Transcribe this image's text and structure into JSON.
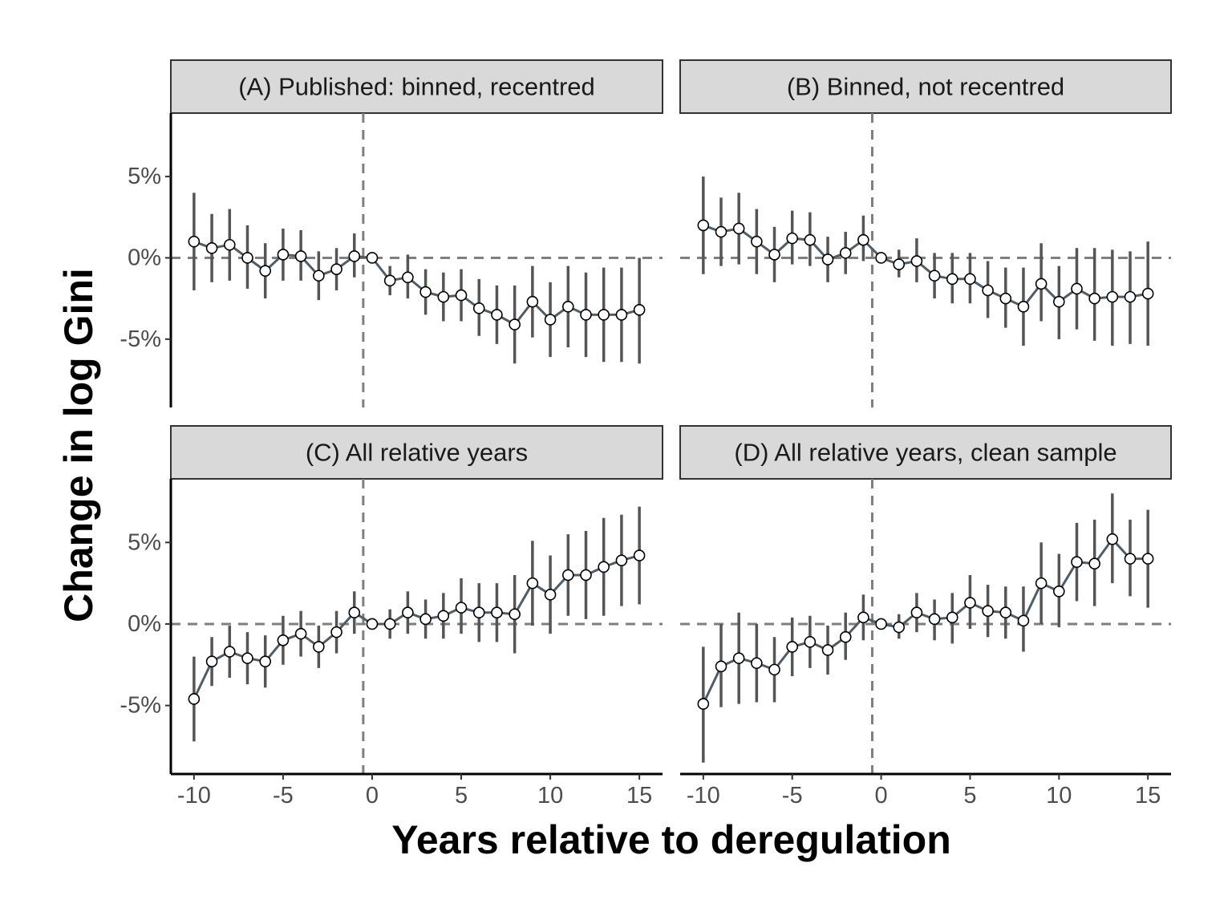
{
  "figure": {
    "ylabel": "Change in log Gini",
    "xlabel": "Years relative to deregulation"
  },
  "chart_data": [
    {
      "type": "line",
      "title": "(A) Published: binned, recentred",
      "x": [
        -10,
        -9,
        -8,
        -7,
        -6,
        -5,
        -4,
        -3,
        -2,
        -1,
        0,
        1,
        2,
        3,
        4,
        5,
        6,
        7,
        8,
        9,
        10,
        11,
        12,
        13,
        14,
        15
      ],
      "y": [
        1.0,
        0.6,
        0.8,
        0.0,
        -0.8,
        0.2,
        0.1,
        -1.1,
        -0.7,
        0.1,
        0.0,
        -1.4,
        -1.2,
        -2.1,
        -2.4,
        -2.3,
        -3.1,
        -3.5,
        -4.1,
        -2.7,
        -3.8,
        -3.0,
        -3.5,
        -3.5,
        -3.5,
        -3.2
      ],
      "lower": [
        -2.0,
        -1.5,
        -1.4,
        -1.9,
        -2.5,
        -1.4,
        -1.4,
        -2.6,
        -2.0,
        -1.2,
        0.0,
        -2.3,
        -2.5,
        -3.5,
        -3.9,
        -3.9,
        -4.8,
        -5.3,
        -6.5,
        -4.9,
        -6.1,
        -5.5,
        -6.1,
        -6.4,
        -6.4,
        -6.5
      ],
      "upper": [
        4.0,
        2.7,
        3.0,
        2.0,
        0.9,
        1.8,
        1.7,
        0.4,
        0.6,
        1.5,
        0.0,
        -0.5,
        0.2,
        -0.7,
        -0.9,
        -0.7,
        -1.3,
        -1.7,
        -1.7,
        -0.5,
        -1.5,
        -0.5,
        -0.9,
        -0.6,
        -0.6,
        0.0
      ],
      "xlim": [
        -11.3,
        16.3
      ],
      "ylim": [
        -9.2,
        8.9
      ],
      "xticks": [
        -10,
        -5,
        0,
        5,
        10,
        15
      ],
      "xtick_labels": [
        "-10",
        "-5",
        "0",
        "5",
        "10",
        "15"
      ],
      "yticks": [
        5,
        0,
        -5
      ],
      "ytick_labels": [
        "5%",
        "0%",
        "-5%"
      ],
      "reference_lines": {
        "vertical_x": -0.5,
        "horizontal_y": 0
      }
    },
    {
      "type": "line",
      "title": "(B) Binned, not recentred",
      "x": [
        -10,
        -9,
        -8,
        -7,
        -6,
        -5,
        -4,
        -3,
        -2,
        -1,
        0,
        1,
        2,
        3,
        4,
        5,
        6,
        7,
        8,
        9,
        10,
        11,
        12,
        13,
        14,
        15
      ],
      "y": [
        2.0,
        1.6,
        1.8,
        1.0,
        0.2,
        1.2,
        1.1,
        -0.1,
        0.3,
        1.1,
        0.0,
        -0.4,
        -0.2,
        -1.1,
        -1.3,
        -1.3,
        -2.0,
        -2.5,
        -3.0,
        -1.6,
        -2.7,
        -1.9,
        -2.5,
        -2.4,
        -2.4,
        -2.2
      ],
      "lower": [
        -1.0,
        -0.5,
        -0.4,
        -1.0,
        -1.5,
        -0.4,
        -0.5,
        -1.5,
        -1.0,
        -0.2,
        0.0,
        -1.2,
        -1.5,
        -2.5,
        -2.8,
        -2.8,
        -3.7,
        -4.3,
        -5.4,
        -3.9,
        -5.0,
        -4.4,
        -5.1,
        -5.4,
        -5.3,
        -5.4
      ],
      "upper": [
        5.0,
        3.7,
        4.0,
        3.0,
        1.9,
        2.9,
        2.8,
        1.3,
        1.6,
        2.6,
        0.0,
        0.5,
        1.2,
        0.3,
        0.3,
        0.3,
        -0.2,
        -0.6,
        -0.6,
        0.9,
        -0.5,
        0.6,
        0.6,
        0.5,
        0.4,
        1.0
      ],
      "xlim": [
        -11.3,
        16.3
      ],
      "ylim": [
        -9.2,
        8.9
      ],
      "xticks": [
        -10,
        -5,
        0,
        5,
        10,
        15
      ],
      "xtick_labels": [
        "-10",
        "-5",
        "0",
        "5",
        "10",
        "15"
      ],
      "yticks": [
        5,
        0,
        -5
      ],
      "ytick_labels": [
        "5%",
        "0%",
        "-5%"
      ],
      "reference_lines": {
        "vertical_x": -0.5,
        "horizontal_y": 0
      }
    },
    {
      "type": "line",
      "title": "(C) All relative years",
      "x": [
        -10,
        -9,
        -8,
        -7,
        -6,
        -5,
        -4,
        -3,
        -2,
        -1,
        0,
        1,
        2,
        3,
        4,
        5,
        6,
        7,
        8,
        9,
        10,
        11,
        12,
        13,
        14,
        15
      ],
      "y": [
        -4.6,
        -2.3,
        -1.7,
        -2.1,
        -2.3,
        -1.0,
        -0.6,
        -1.4,
        -0.5,
        0.7,
        0.0,
        0.0,
        0.7,
        0.3,
        0.5,
        1.0,
        0.7,
        0.7,
        0.6,
        2.5,
        1.8,
        3.0,
        3.0,
        3.5,
        3.9,
        4.2
      ],
      "lower": [
        -7.2,
        -3.8,
        -3.3,
        -3.7,
        -3.9,
        -2.5,
        -2.0,
        -2.7,
        -1.8,
        -0.6,
        0.0,
        -0.9,
        -0.6,
        -0.9,
        -0.9,
        -0.6,
        -1.1,
        -1.1,
        -1.8,
        -0.1,
        -0.6,
        0.5,
        0.3,
        0.5,
        1.1,
        1.2
      ],
      "upper": [
        -2.0,
        -0.8,
        -0.1,
        -0.5,
        -0.7,
        0.5,
        0.8,
        -0.1,
        0.8,
        2.0,
        0.0,
        0.9,
        2.0,
        1.5,
        1.9,
        2.8,
        2.5,
        2.5,
        3.0,
        5.1,
        4.2,
        5.5,
        5.7,
        6.5,
        6.7,
        7.2
      ],
      "xlim": [
        -11.3,
        16.3
      ],
      "ylim": [
        -9.2,
        8.9
      ],
      "xticks": [
        -10,
        -5,
        0,
        5,
        10,
        15
      ],
      "xtick_labels": [
        "-10",
        "-5",
        "0",
        "5",
        "10",
        "15"
      ],
      "yticks": [
        5,
        0,
        -5
      ],
      "ytick_labels": [
        "5%",
        "0%",
        "-5%"
      ],
      "reference_lines": {
        "vertical_x": -0.5,
        "horizontal_y": 0
      }
    },
    {
      "type": "line",
      "title": "(D) All relative years, clean sample",
      "x": [
        -10,
        -9,
        -8,
        -7,
        -6,
        -5,
        -4,
        -3,
        -2,
        -1,
        0,
        1,
        2,
        3,
        4,
        5,
        6,
        7,
        8,
        9,
        10,
        11,
        12,
        13,
        14,
        15
      ],
      "y": [
        -4.9,
        -2.6,
        -2.1,
        -2.4,
        -2.8,
        -1.4,
        -1.1,
        -1.6,
        -0.8,
        0.4,
        0.0,
        -0.2,
        0.7,
        0.3,
        0.4,
        1.3,
        0.8,
        0.7,
        0.2,
        2.5,
        2.0,
        3.8,
        3.7,
        5.2,
        4.0,
        4.0
      ],
      "lower": [
        -8.5,
        -5.1,
        -4.9,
        -4.8,
        -4.8,
        -3.2,
        -2.7,
        -3.1,
        -2.2,
        -1.0,
        0.0,
        -0.9,
        -0.5,
        -1.0,
        -1.2,
        -0.3,
        -0.8,
        -0.9,
        -1.7,
        0.0,
        -0.2,
        1.4,
        1.1,
        2.5,
        1.7,
        1.0
      ],
      "upper": [
        -1.4,
        0.0,
        0.7,
        0.0,
        -0.8,
        0.4,
        0.5,
        -0.1,
        0.7,
        1.8,
        0.0,
        0.6,
        1.9,
        1.5,
        1.9,
        3.0,
        2.4,
        2.3,
        2.3,
        5.0,
        4.3,
        6.2,
        6.4,
        8.0,
        6.4,
        7.0
      ],
      "xlim": [
        -11.3,
        16.3
      ],
      "ylim": [
        -9.2,
        8.9
      ],
      "xticks": [
        -10,
        -5,
        0,
        5,
        10,
        15
      ],
      "xtick_labels": [
        "-10",
        "-5",
        "0",
        "5",
        "10",
        "15"
      ],
      "yticks": [
        5,
        0,
        -5
      ],
      "ytick_labels": [
        "5%",
        "0%",
        "-5%"
      ],
      "reference_lines": {
        "vertical_x": -0.5,
        "horizontal_y": 0
      }
    }
  ],
  "colors": {
    "line": "#4f5d68",
    "errorbar": "#555555",
    "marker_fill": "#ffffff",
    "marker_edge": "#000000",
    "reference_line": "#7f7f7f",
    "strip_fill": "#d9d9d9",
    "strip_border": "#333333",
    "axis": "#000000"
  }
}
